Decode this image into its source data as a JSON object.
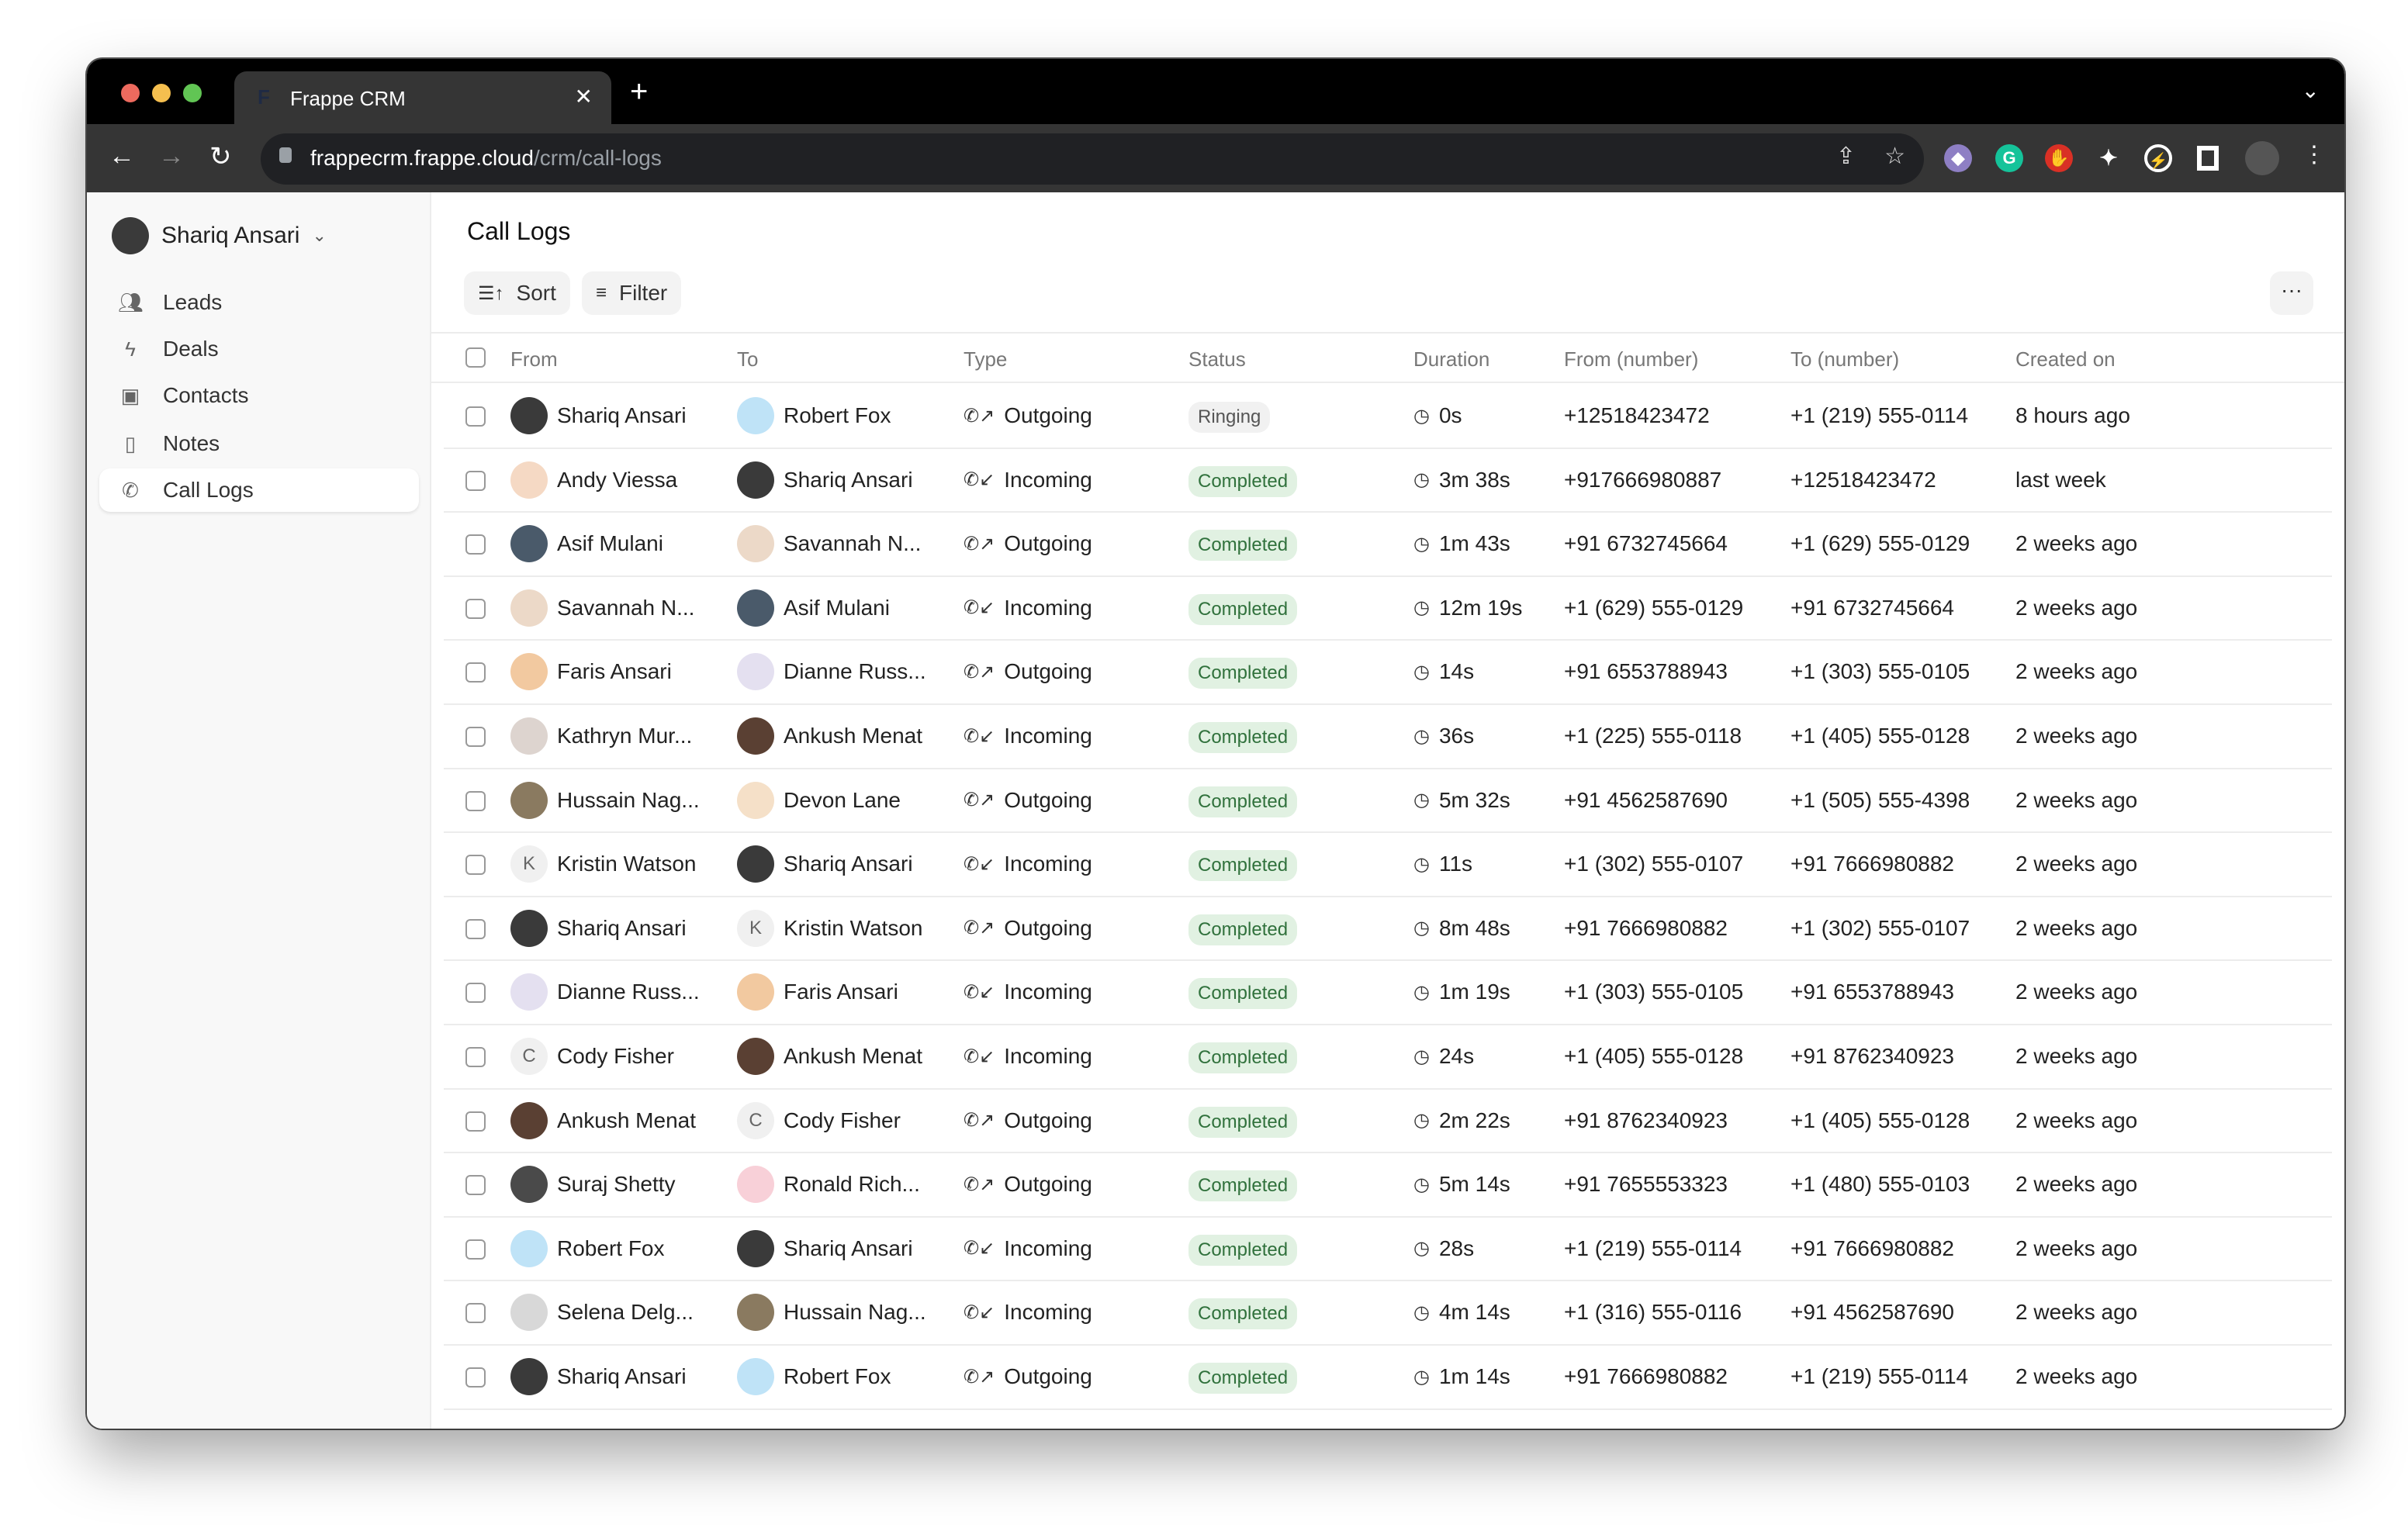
{
  "browser": {
    "tab_title": "Frappe CRM",
    "tab_favicon": "F",
    "url_host": "frappecrm.frappe.cloud",
    "url_path": "/crm/call-logs",
    "extensions": [
      {
        "name": "octocat-extension-icon",
        "color": "#8e7fc4"
      },
      {
        "name": "grammarly-extension-icon",
        "color": "#15c39a"
      },
      {
        "name": "adblock-extension-icon",
        "color": "#d93025"
      },
      {
        "name": "puzzle-extensions-icon",
        "color": "#ffffff"
      },
      {
        "name": "bolt-leaf-extension-icon",
        "color": "#ffffff"
      },
      {
        "name": "sidepanel-icon",
        "color": "#ffffff"
      }
    ]
  },
  "sidebar": {
    "user": "Shariq Ansari",
    "items": [
      {
        "label": "Leads",
        "icon": "users-icon"
      },
      {
        "label": "Deals",
        "icon": "lightning-icon"
      },
      {
        "label": "Contacts",
        "icon": "contact-icon"
      },
      {
        "label": "Notes",
        "icon": "note-icon"
      },
      {
        "label": "Call Logs",
        "icon": "phone-icon",
        "active": true
      }
    ]
  },
  "main": {
    "title": "Call Logs",
    "sort_label": "Sort",
    "filter_label": "Filter",
    "more_label": "···",
    "columns": [
      "From",
      "To",
      "Type",
      "Status",
      "Duration",
      "From (number)",
      "To (number)",
      "Created on"
    ]
  },
  "colors": {
    "completed_bg": "#e1f1e2",
    "completed_text": "#30713c",
    "ringing_bg": "#f1f1f1"
  },
  "rows": [
    {
      "from": "Shariq Ansari",
      "from_av": "#3a3a3a",
      "to": "Robert Fox",
      "to_av": "#bfe3f7",
      "type": "Outgoing",
      "status": "Ringing",
      "duration": "0s",
      "from_number": "+12518423472",
      "to_number": "+1 (219) 555-0114",
      "created": "8 hours ago"
    },
    {
      "from": "Andy Viessa",
      "from_av": "#f5d9c4",
      "to": "Shariq Ansari",
      "to_av": "#3a3a3a",
      "type": "Incoming",
      "status": "Completed",
      "duration": "3m 38s",
      "from_number": "+917666980887",
      "to_number": "+12518423472",
      "created": "last week"
    },
    {
      "from": "Asif Mulani",
      "from_av": "#4a5a6a",
      "to": "Savannah N...",
      "to_av": "#ecd9c8",
      "type": "Outgoing",
      "status": "Completed",
      "duration": "1m 43s",
      "from_number": "+91 6732745664",
      "to_number": "+1 (629) 555-0129",
      "created": "2 weeks ago"
    },
    {
      "from": "Savannah N...",
      "from_av": "#ecd9c8",
      "to": "Asif Mulani",
      "to_av": "#4a5a6a",
      "type": "Incoming",
      "status": "Completed",
      "duration": "12m 19s",
      "from_number": "+1 (629) 555-0129",
      "to_number": "+91 6732745664",
      "created": "2 weeks ago"
    },
    {
      "from": "Faris Ansari",
      "from_av": "#f2c9a0",
      "to": "Dianne Russ...",
      "to_av": "#e4e0f0",
      "type": "Outgoing",
      "status": "Completed",
      "duration": "14s",
      "from_number": "+91 6553788943",
      "to_number": "+1 (303) 555-0105",
      "created": "2 weeks ago"
    },
    {
      "from": "Kathryn Mur...",
      "from_av": "#ddd4cf",
      "to": "Ankush Menat",
      "to_av": "#5a4033",
      "type": "Incoming",
      "status": "Completed",
      "duration": "36s",
      "from_number": "+1 (225) 555-0118",
      "to_number": "+1 (405) 555-0128",
      "created": "2 weeks ago"
    },
    {
      "from": "Hussain Nag...",
      "from_av": "#8a7a60",
      "to": "Devon Lane",
      "to_av": "#f5e0c8",
      "type": "Outgoing",
      "status": "Completed",
      "duration": "5m 32s",
      "from_number": "+91 4562587690",
      "to_number": "+1 (505) 555-4398",
      "created": "2 weeks ago"
    },
    {
      "from": "Kristin Watson",
      "from_letter": "K",
      "to": "Shariq Ansari",
      "to_av": "#3a3a3a",
      "type": "Incoming",
      "status": "Completed",
      "duration": "11s",
      "from_number": "+1 (302) 555-0107",
      "to_number": "+91 7666980882",
      "created": "2 weeks ago"
    },
    {
      "from": "Shariq Ansari",
      "from_av": "#3a3a3a",
      "to": "Kristin Watson",
      "to_letter": "K",
      "type": "Outgoing",
      "status": "Completed",
      "duration": "8m 48s",
      "from_number": "+91 7666980882",
      "to_number": "+1 (302) 555-0107",
      "created": "2 weeks ago"
    },
    {
      "from": "Dianne Russ...",
      "from_av": "#e4e0f0",
      "to": "Faris Ansari",
      "to_av": "#f2c9a0",
      "type": "Incoming",
      "status": "Completed",
      "duration": "1m 19s",
      "from_number": "+1 (303) 555-0105",
      "to_number": "+91 6553788943",
      "created": "2 weeks ago"
    },
    {
      "from": "Cody Fisher",
      "from_letter": "C",
      "to": "Ankush Menat",
      "to_av": "#5a4033",
      "type": "Incoming",
      "status": "Completed",
      "duration": "24s",
      "from_number": "+1 (405) 555-0128",
      "to_number": "+91 8762340923",
      "created": "2 weeks ago"
    },
    {
      "from": "Ankush Menat",
      "from_av": "#5a4033",
      "to": "Cody Fisher",
      "to_letter": "C",
      "type": "Outgoing",
      "status": "Completed",
      "duration": "2m 22s",
      "from_number": "+91 8762340923",
      "to_number": "+1 (405) 555-0128",
      "created": "2 weeks ago"
    },
    {
      "from": "Suraj Shetty",
      "from_av": "#4a4a4a",
      "to": "Ronald Rich...",
      "to_av": "#f8d0d8",
      "type": "Outgoing",
      "status": "Completed",
      "duration": "5m 14s",
      "from_number": "+91 7655553323",
      "to_number": "+1 (480) 555-0103",
      "created": "2 weeks ago"
    },
    {
      "from": "Robert Fox",
      "from_av": "#bfe3f7",
      "to": "Shariq Ansari",
      "to_av": "#3a3a3a",
      "type": "Incoming",
      "status": "Completed",
      "duration": "28s",
      "from_number": "+1 (219) 555-0114",
      "to_number": "+91 7666980882",
      "created": "2 weeks ago"
    },
    {
      "from": "Selena Delg...",
      "from_av": "#d8d8d8",
      "to": "Hussain Nag...",
      "to_av": "#8a7a60",
      "type": "Incoming",
      "status": "Completed",
      "duration": "4m 14s",
      "from_number": "+1 (316) 555-0116",
      "to_number": "+91 4562587690",
      "created": "2 weeks ago"
    },
    {
      "from": "Shariq Ansari",
      "from_av": "#3a3a3a",
      "to": "Robert Fox",
      "to_av": "#bfe3f7",
      "type": "Outgoing",
      "status": "Completed",
      "duration": "1m 14s",
      "from_number": "+91 7666980882",
      "to_number": "+1 (219) 555-0114",
      "created": "2 weeks ago"
    }
  ]
}
